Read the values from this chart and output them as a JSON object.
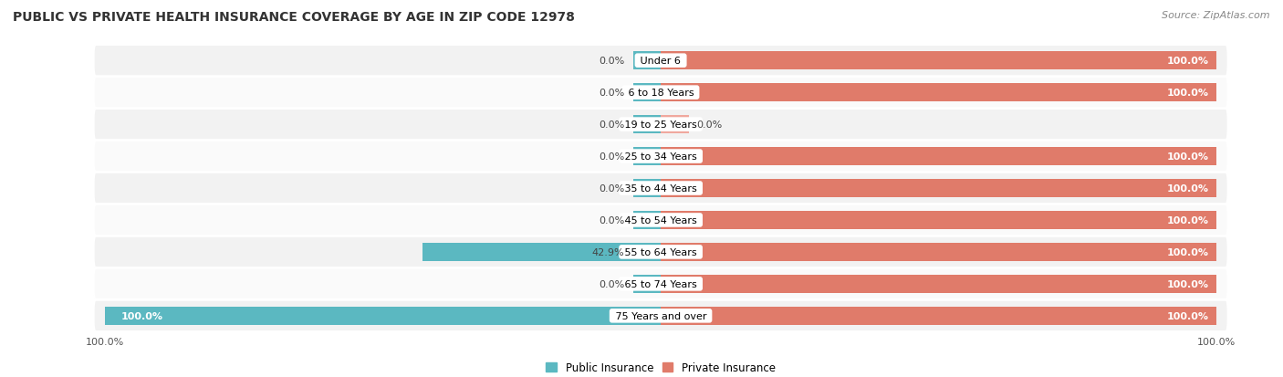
{
  "title": "PUBLIC VS PRIVATE HEALTH INSURANCE COVERAGE BY AGE IN ZIP CODE 12978",
  "source": "Source: ZipAtlas.com",
  "categories": [
    "Under 6",
    "6 to 18 Years",
    "19 to 25 Years",
    "25 to 34 Years",
    "35 to 44 Years",
    "45 to 54 Years",
    "55 to 64 Years",
    "65 to 74 Years",
    "75 Years and over"
  ],
  "public_values": [
    0.0,
    0.0,
    0.0,
    0.0,
    0.0,
    0.0,
    42.9,
    0.0,
    100.0
  ],
  "private_values": [
    100.0,
    100.0,
    0.0,
    100.0,
    100.0,
    100.0,
    100.0,
    100.0,
    100.0
  ],
  "public_color": "#5bb8c1",
  "private_color": "#e07b6a",
  "private_stub_color": "#f0a89e",
  "row_colors": [
    "#f2f2f2",
    "#fafafa"
  ],
  "title_fontsize": 10,
  "source_fontsize": 8,
  "value_fontsize": 8,
  "category_fontsize": 8,
  "legend_fontsize": 8.5,
  "axis_label_fontsize": 8,
  "stub_size": 5.0,
  "bar_height": 0.58,
  "xlim": 100.0
}
